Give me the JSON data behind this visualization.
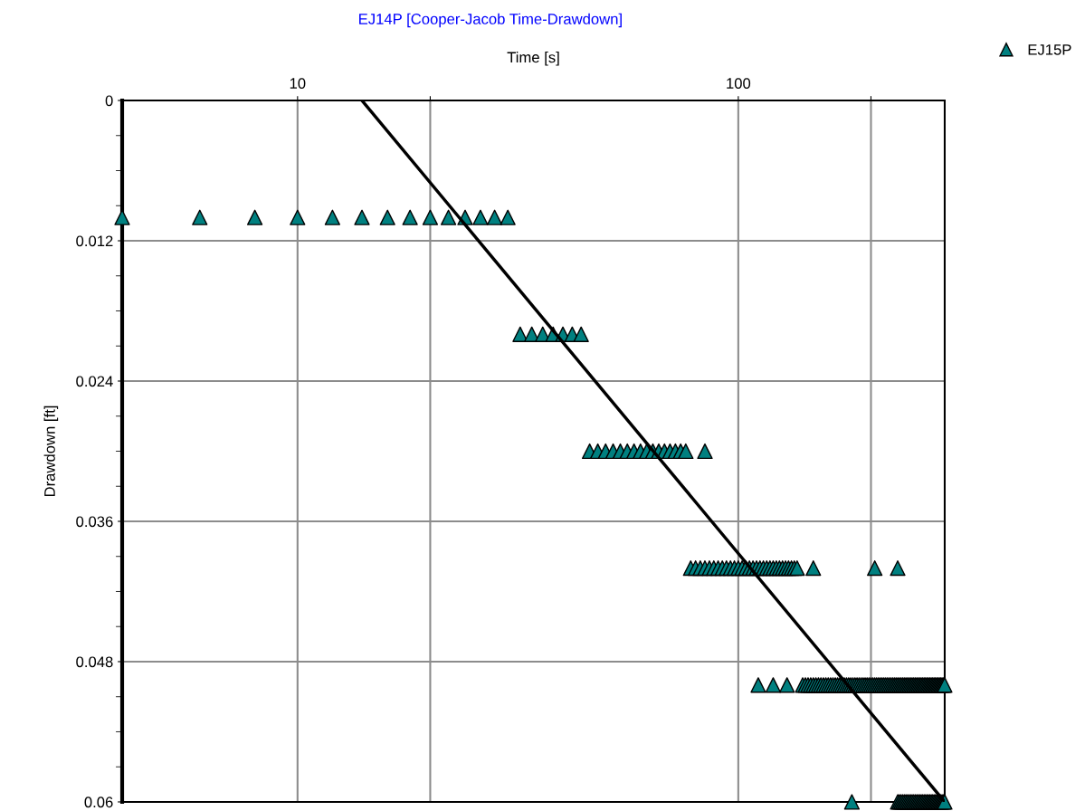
{
  "chart_data": {
    "type": "scatter",
    "title": "EJ14P [Cooper-Jacob Time-Drawdown]",
    "xlabel": "Time [s]",
    "ylabel": "Drawdown [ft]",
    "log": "x",
    "xlim": [
      4,
      294
    ],
    "xticks": [
      10,
      {
        "value": 20,
        "label": null
      },
      100,
      {
        "value": 200,
        "label": null
      }
    ],
    "ylim": [
      0.06,
      0
    ],
    "yticks": [
      0,
      {
        "value": 0.003,
        "label": null
      },
      {
        "value": 0.006,
        "label": null
      },
      {
        "value": 0.009,
        "label": null
      },
      0.012,
      {
        "value": 0.015,
        "label": null
      },
      {
        "value": 0.018,
        "label": null
      },
      {
        "value": 0.021,
        "label": null
      },
      0.024,
      {
        "value": 0.027,
        "label": null
      },
      {
        "value": 0.03,
        "label": null
      },
      {
        "value": 0.033,
        "label": null
      },
      0.036,
      {
        "value": 0.039,
        "label": null
      },
      {
        "value": 0.042,
        "label": null
      },
      {
        "value": 0.045,
        "label": null
      },
      0.048,
      {
        "value": 0.051,
        "label": null
      },
      {
        "value": 0.054,
        "label": null
      },
      {
        "value": 0.057,
        "label": null
      },
      0.06
    ],
    "grid": true,
    "legend": "top right",
    "marker": "triangle",
    "series": [
      {
        "name": "EJ15P",
        "color": "#008080",
        "x": [
          4,
          6,
          8,
          10,
          12,
          14,
          16,
          18,
          20,
          22,
          24,
          26,
          28,
          30,
          32,
          34,
          36,
          38,
          40,
          42,
          44,
          46,
          48,
          50,
          52,
          54,
          56,
          58,
          60,
          62,
          64,
          66,
          68,
          70,
          72,
          74,
          76,
          84,
          78,
          80,
          82,
          84,
          86,
          88,
          90,
          92,
          94,
          96,
          98,
          100,
          102,
          104,
          106,
          108,
          110,
          112,
          114,
          116,
          118,
          120,
          122,
          124,
          126,
          128,
          130,
          132,
          134,
          136,
          148,
          204,
          230,
          111,
          120,
          129,
          140,
          142,
          144,
          146,
          148,
          150,
          152,
          154,
          156,
          158,
          160,
          162,
          164,
          166,
          168,
          170,
          172,
          174,
          176,
          178,
          180,
          182,
          184,
          186,
          188,
          190,
          192,
          194,
          196,
          198,
          200,
          202,
          204,
          206,
          208,
          210,
          212,
          214,
          216,
          218,
          220,
          222,
          224,
          226,
          228,
          230,
          232,
          234,
          236,
          238,
          240,
          242,
          244,
          246,
          248,
          250,
          252,
          254,
          256,
          258,
          260,
          262,
          264,
          266,
          268,
          270,
          272,
          274,
          276,
          278,
          280,
          282,
          284,
          286,
          288,
          290,
          292,
          294,
          181,
          230,
          232,
          234,
          236,
          238,
          240,
          242,
          244,
          246,
          248,
          250,
          252,
          254,
          256,
          258,
          260,
          262,
          264,
          266,
          268,
          270,
          272,
          274,
          276,
          278,
          280,
          282,
          284,
          286,
          288,
          290,
          292,
          294
        ],
        "values": [
          0.01,
          0.01,
          0.01,
          0.01,
          0.01,
          0.01,
          0.01,
          0.01,
          0.01,
          0.01,
          0.01,
          0.01,
          0.01,
          0.01,
          0.02,
          0.02,
          0.02,
          0.02,
          0.02,
          0.02,
          0.02,
          0.03,
          0.03,
          0.03,
          0.03,
          0.03,
          0.03,
          0.03,
          0.03,
          0.03,
          0.03,
          0.03,
          0.03,
          0.03,
          0.03,
          0.03,
          0.03,
          0.03,
          0.04,
          0.04,
          0.04,
          0.04,
          0.04,
          0.04,
          0.04,
          0.04,
          0.04,
          0.04,
          0.04,
          0.04,
          0.04,
          0.04,
          0.04,
          0.04,
          0.04,
          0.04,
          0.04,
          0.04,
          0.04,
          0.04,
          0.04,
          0.04,
          0.04,
          0.04,
          0.04,
          0.04,
          0.04,
          0.04,
          0.04,
          0.04,
          0.04,
          0.05,
          0.05,
          0.05,
          0.05,
          0.05,
          0.05,
          0.05,
          0.05,
          0.05,
          0.05,
          0.05,
          0.05,
          0.05,
          0.05,
          0.05,
          0.05,
          0.05,
          0.05,
          0.05,
          0.05,
          0.05,
          0.05,
          0.05,
          0.05,
          0.05,
          0.05,
          0.05,
          0.05,
          0.05,
          0.05,
          0.05,
          0.05,
          0.05,
          0.05,
          0.05,
          0.05,
          0.05,
          0.05,
          0.05,
          0.05,
          0.05,
          0.05,
          0.05,
          0.05,
          0.05,
          0.05,
          0.05,
          0.05,
          0.05,
          0.05,
          0.05,
          0.05,
          0.05,
          0.05,
          0.05,
          0.05,
          0.05,
          0.05,
          0.05,
          0.05,
          0.05,
          0.05,
          0.05,
          0.05,
          0.05,
          0.05,
          0.05,
          0.05,
          0.05,
          0.05,
          0.05,
          0.05,
          0.05,
          0.05,
          0.05,
          0.05,
          0.05,
          0.05,
          0.05,
          0.05,
          0.05,
          0.06,
          0.06,
          0.06,
          0.06,
          0.06,
          0.06,
          0.06,
          0.06,
          0.06,
          0.06,
          0.06,
          0.06,
          0.06,
          0.06,
          0.06,
          0.06,
          0.06,
          0.06,
          0.06,
          0.06,
          0.06,
          0.06,
          0.06,
          0.06,
          0.06,
          0.06,
          0.06,
          0.06,
          0.06,
          0.06,
          0.06,
          0.06,
          0.06,
          0.06
        ]
      },
      {
        "type": "line",
        "color": "#000000",
        "marker": "none",
        "x": [
          14,
          294
        ],
        "values": [
          0,
          0.06
        ]
      }
    ]
  }
}
